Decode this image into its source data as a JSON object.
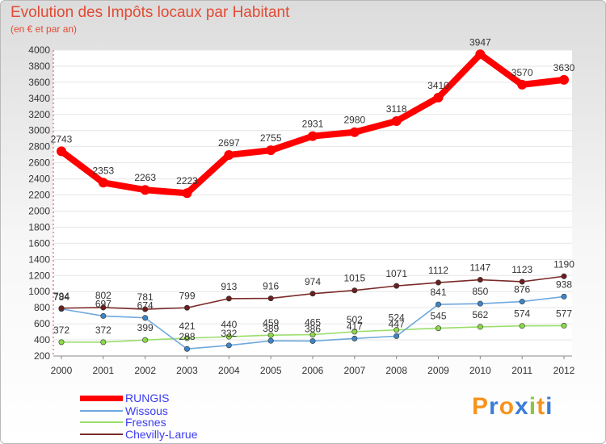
{
  "title": "Evolution des Impôts locaux par Habitant",
  "subtitle": "(en € et par an)",
  "logo": "Proxiti",
  "chart_data": {
    "type": "line",
    "title": "Evolution des Impôts locaux par Habitant",
    "ylabel": "(en € et par an)",
    "xlabel": "",
    "x": [
      "2000",
      "2001",
      "2002",
      "2003",
      "2004",
      "2005",
      "2006",
      "2007",
      "2008",
      "2009",
      "2010",
      "2011",
      "2012"
    ],
    "ylim": [
      200,
      4000
    ],
    "yticks": [
      200,
      400,
      600,
      800,
      1000,
      1200,
      1400,
      1600,
      1800,
      2000,
      2200,
      2400,
      2600,
      2800,
      3000,
      3200,
      3400,
      3600,
      3800,
      4000
    ],
    "legend_position": "bottom-left",
    "series": [
      {
        "name": "RUNGIS",
        "color": "#ff0000",
        "marker": "#ff0000",
        "values": [
          2743,
          2353,
          2263,
          2223,
          2697,
          2755,
          2931,
          2980,
          3118,
          3410,
          3947,
          3570,
          3630
        ]
      },
      {
        "name": "Wissous",
        "color": "#6fa8dc",
        "marker": "#3d85c6",
        "values": [
          784,
          697,
          674,
          288,
          332,
          389,
          386,
          417,
          447,
          841,
          850,
          876,
          938
        ]
      },
      {
        "name": "Fresnes",
        "color": "#9ade6a",
        "marker": "#8cd84a",
        "values": [
          372,
          372,
          399,
          421,
          440,
          459,
          465,
          502,
          524,
          545,
          562,
          574,
          577
        ]
      },
      {
        "name": "Chevilly-Larue",
        "color": "#7b2a2a",
        "marker": "#6b1f1f",
        "values": [
          794,
          802,
          781,
          799,
          913,
          916,
          974,
          1015,
          1071,
          1112,
          1147,
          1123,
          1190
        ]
      }
    ]
  }
}
